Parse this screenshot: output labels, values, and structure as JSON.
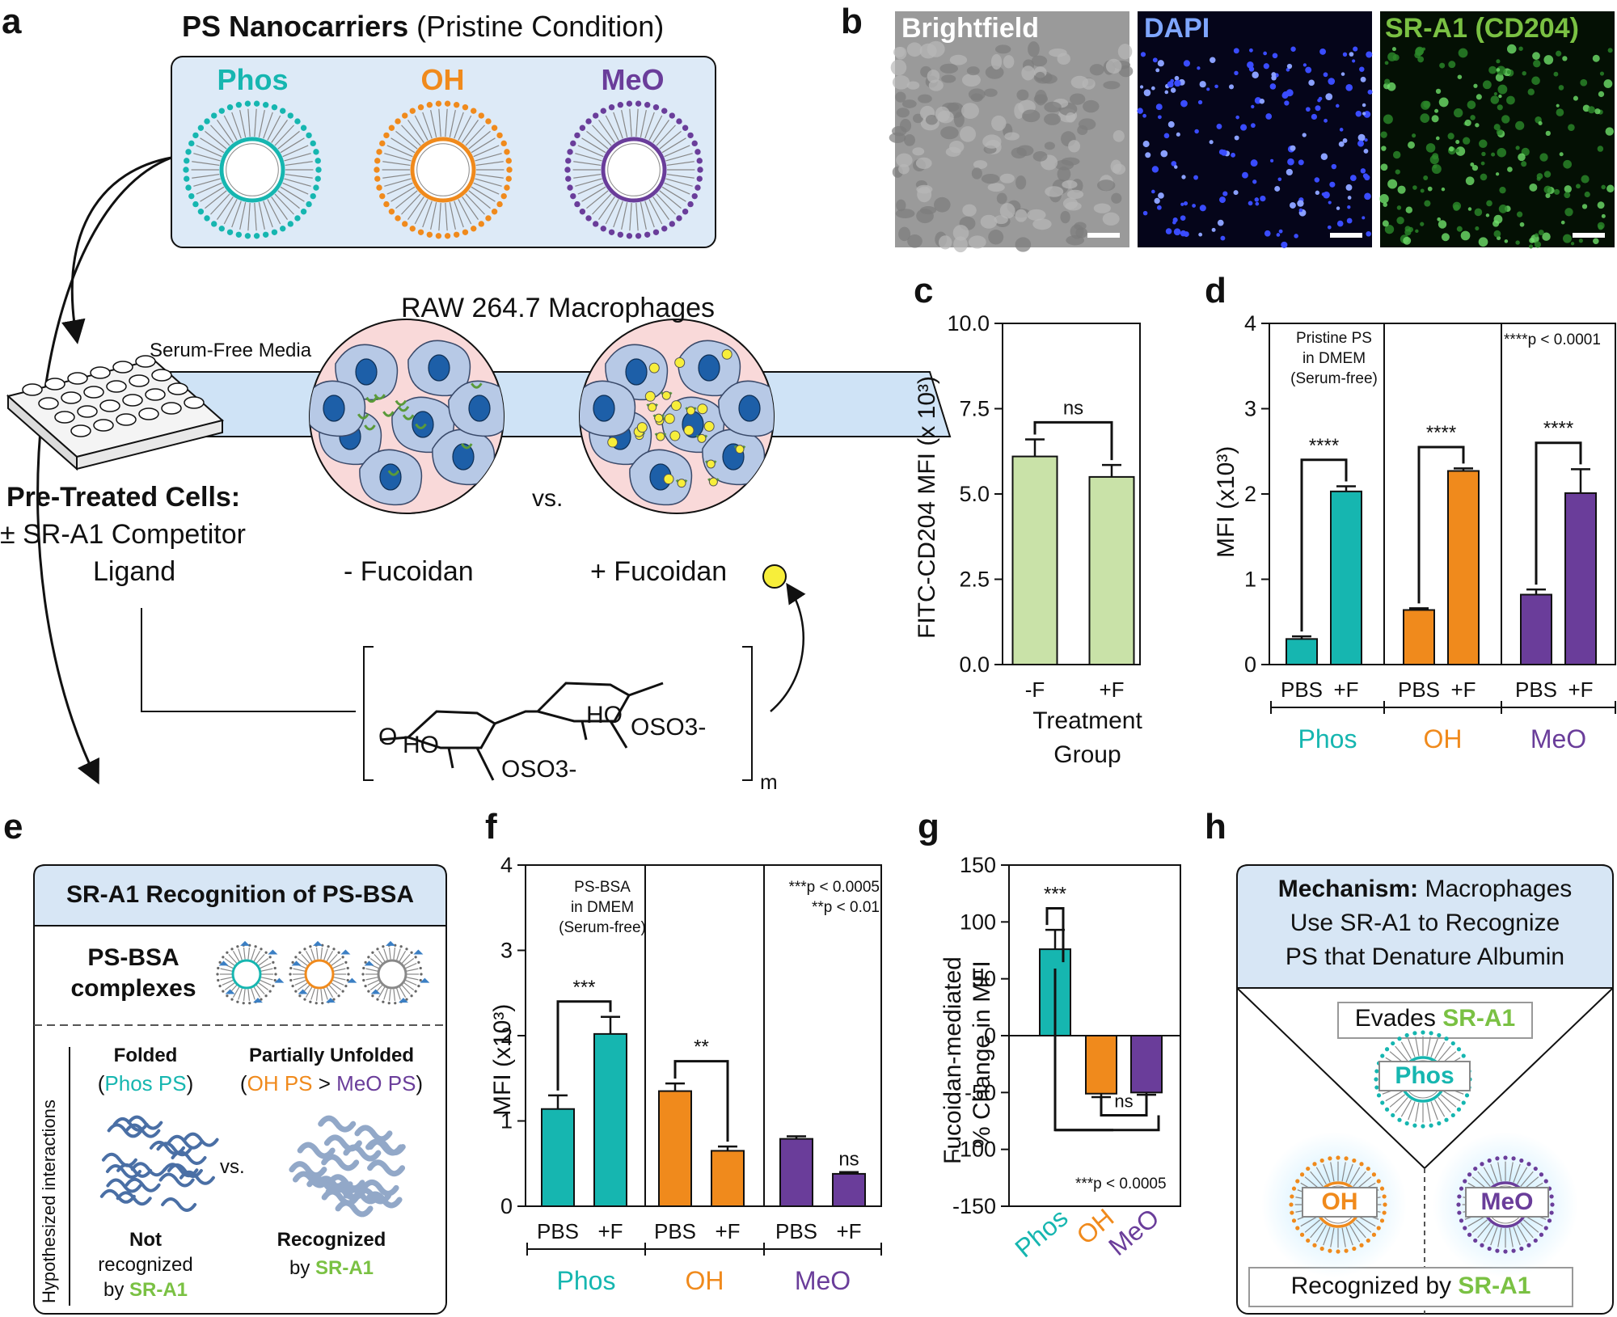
{
  "panel_labels": [
    "a",
    "b",
    "c",
    "d",
    "e",
    "f",
    "g",
    "h"
  ],
  "panel_a": {
    "title_bold": "PS Nanocarriers",
    "title_rest": " (Pristine Condition)",
    "carriers": [
      "Phos",
      "OH",
      "MeO"
    ],
    "media_label": "Serum-Free Media",
    "cells_title": "RAW 264.7 Macrophages",
    "pretreated_title": "Pre-Treated Cells:",
    "pretreated_line2": "± SR-A1 Competitor",
    "pretreated_line3": "Ligand",
    "vs": "vs.",
    "minus_fucoidan": "- Fucoidan",
    "plus_fucoidan": "+ Fucoidan",
    "chem_ho1": "HO",
    "chem_ho2": "HO",
    "chem_oso3_1": "OSO3-",
    "chem_oso3_2": "OSO3-",
    "chem_m": "m"
  },
  "panel_b": {
    "labels": [
      "Brightfield",
      "DAPI",
      "SR-A1 (CD204)"
    ],
    "colors": [
      "#ffffff",
      "#7fa6ff",
      "#7ac143"
    ]
  },
  "panel_c": {
    "ylabel": "FITC-CD204 MFI (x 10³)",
    "xlabel_line1": "Treatment",
    "xlabel_line2": "Group",
    "sig": "ns"
  },
  "panel_d": {
    "ylabel": "MFI (x10³)",
    "note_left": [
      "Pristine PS",
      "in DMEM",
      "(Serum-free)"
    ],
    "note_right": "****p < 0.0001",
    "sig": [
      "****",
      "****",
      "****"
    ]
  },
  "panel_e": {
    "header": "SR-A1 Recognition of PS-BSA",
    "complex_label": [
      "PS-BSA",
      "complexes"
    ],
    "side_label": "Hypothesized interactions",
    "folded": "Folded",
    "folded_sub_open": "(",
    "folded_sub": "Phos PS",
    "folded_sub_close": ")",
    "unfolded": "Partially Unfolded",
    "unfolded_sub_open": "(",
    "unfolded_oh": "OH PS",
    "unfolded_gt": " > ",
    "unfolded_meo": "MeO PS",
    "unfolded_sub_close": ")",
    "vs": "vs.",
    "not_recognized": [
      "Not",
      "recognized",
      "by "
    ],
    "recognized": [
      "Recognized",
      "by "
    ],
    "sra1": "SR-A1"
  },
  "panel_f": {
    "ylabel": "MFI (x10³)",
    "note_left": [
      "PS-BSA",
      "in DMEM",
      "(Serum-free)"
    ],
    "note_right": [
      "***p < 0.0005",
      "**p < 0.01"
    ],
    "sig": [
      "***",
      "**",
      "ns"
    ]
  },
  "panel_g": {
    "ylabel_line1": "Fucoidan-mediated",
    "ylabel_line2": "% Change in MFI",
    "note": "***p < 0.0005",
    "sig": [
      "***",
      "ns"
    ]
  },
  "panel_h": {
    "header_bold": "Mechanism:",
    "header_rest": " Macrophages",
    "header_line2": "Use SR-A1 to Recognize",
    "header_line3": "PS that Denature Albumin",
    "evades": "Evades ",
    "recognized_by": "Recognized by ",
    "sra1": "SR-A1",
    "phos": "Phos",
    "oh": "OH",
    "meo": "MeO"
  },
  "colors": {
    "phos": "#16b6b0",
    "oh": "#f08a1c",
    "meo": "#6a3d9a",
    "green": "#7ac143",
    "box_fill": "#ddeaf7",
    "light_green": "#c9e2a8"
  },
  "chart_data": [
    {
      "panel": "c",
      "type": "bar",
      "categories": [
        "-F",
        "+F"
      ],
      "values": [
        6.1,
        5.5
      ],
      "errors": [
        0.5,
        0.35
      ],
      "ylim": [
        0,
        10
      ],
      "yticks": [
        "0.0",
        "2.5",
        "5.0",
        "7.5",
        "10.0"
      ],
      "ylabel": "FITC-CD204 MFI (x 10³)",
      "xlabel": "Treatment Group"
    },
    {
      "panel": "d",
      "type": "bar",
      "groups": [
        "Phos",
        "OH",
        "MeO"
      ],
      "categories": [
        "PBS",
        "+F",
        "PBS",
        "+F",
        "PBS",
        "+F"
      ],
      "values": [
        0.3,
        2.03,
        0.64,
        2.27,
        0.82,
        2.01
      ],
      "errors": [
        0.03,
        0.06,
        0.02,
        0.03,
        0.06,
        0.28
      ],
      "ylim": [
        0,
        4
      ],
      "yticks": [
        "0",
        "1",
        "2",
        "3",
        "4"
      ],
      "ylabel": "MFI (x10³)"
    },
    {
      "panel": "f",
      "type": "bar",
      "groups": [
        "Phos",
        "OH",
        "MeO"
      ],
      "categories": [
        "PBS",
        "+F",
        "PBS",
        "+F",
        "PBS",
        "+F"
      ],
      "values": [
        1.14,
        2.02,
        1.35,
        0.65,
        0.79,
        0.38
      ],
      "errors": [
        0.16,
        0.2,
        0.09,
        0.05,
        0.03,
        0.02
      ],
      "ylim": [
        0,
        4
      ],
      "yticks": [
        "0",
        "1",
        "2",
        "3",
        "4"
      ],
      "ylabel": "MFI (x10³)"
    },
    {
      "panel": "g",
      "type": "bar",
      "categories": [
        "Phos",
        "OH",
        "MeO"
      ],
      "values": [
        76,
        -51,
        -50
      ],
      "errors": [
        17,
        3,
        2
      ],
      "ylim": [
        -150,
        150
      ],
      "yticks": [
        "-150",
        "-100",
        "-50",
        "0",
        "50",
        "100",
        "150"
      ],
      "ylabel": "Fucoidan-mediated % Change in MFI"
    }
  ]
}
